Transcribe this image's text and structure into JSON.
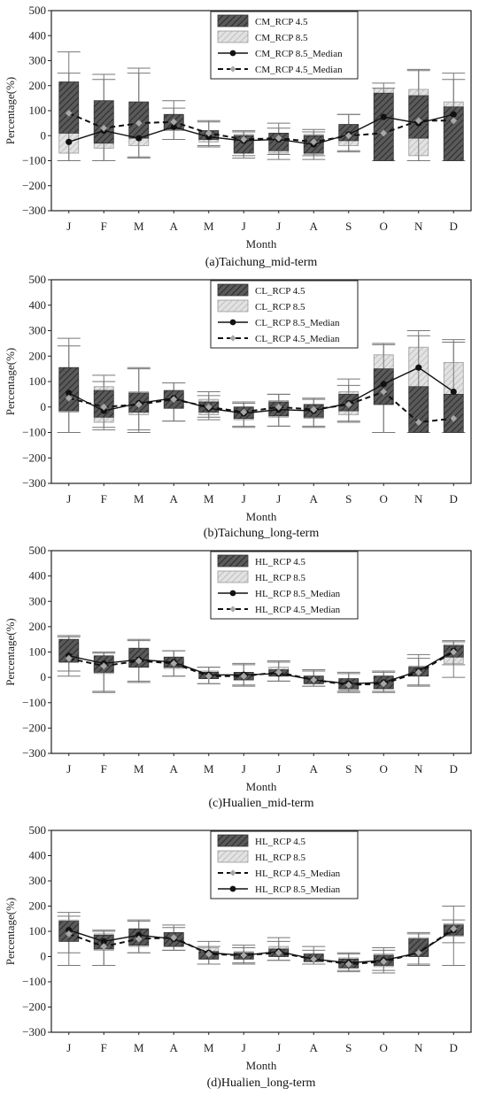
{
  "chart_data": [
    {
      "type": "box",
      "caption": "(a)Taichung_mid-term",
      "xlabel": "Month",
      "ylabel": "Percentage(%)",
      "ylim": [
        -300,
        500
      ],
      "yticks": [
        "500",
        "400",
        "300",
        "200",
        "100",
        "0",
        "−100",
        "−200",
        "−300"
      ],
      "categories": [
        "J",
        "F",
        "M",
        "A",
        "M",
        "J",
        "J",
        "A",
        "S",
        "O",
        "N",
        "D"
      ],
      "legend": [
        {
          "label": "CM_RCP 4.5",
          "kind": "box45"
        },
        {
          "label": "CM_RCP 8.5",
          "kind": "box85"
        },
        {
          "label": "CM_RCP 8.5_Median",
          "kind": "median85"
        },
        {
          "label": "CM_RCP 4.5_Median",
          "kind": "median45"
        }
      ],
      "rcp45_box": [
        {
          "whisker_min": -100,
          "q1": 10,
          "q3": 215,
          "whisker_max": 335
        },
        {
          "whisker_min": -100,
          "q1": -30,
          "q3": 140,
          "whisker_max": 245
        },
        {
          "whisker_min": -85,
          "q1": -10,
          "q3": 135,
          "whisker_max": 270
        },
        {
          "whisker_min": -15,
          "q1": 25,
          "q3": 85,
          "whisker_max": 140
        },
        {
          "whisker_min": -40,
          "q1": -15,
          "q3": 20,
          "whisker_max": 55
        },
        {
          "whisker_min": -80,
          "q1": -70,
          "q3": 0,
          "whisker_max": 15
        },
        {
          "whisker_min": -75,
          "q1": -60,
          "q3": 10,
          "whisker_max": 30
        },
        {
          "whisker_min": -80,
          "q1": -70,
          "q3": 0,
          "whisker_max": 15
        },
        {
          "whisker_min": -60,
          "q1": -20,
          "q3": 45,
          "whisker_max": 85
        },
        {
          "whisker_min": -100,
          "q1": -100,
          "q3": 170,
          "whisker_max": 190
        },
        {
          "whisker_min": -100,
          "q1": -10,
          "q3": 160,
          "whisker_max": 260
        },
        {
          "whisker_min": -100,
          "q1": -100,
          "q3": 115,
          "whisker_max": 225
        }
      ],
      "rcp85_box": [
        {
          "whisker_min": -100,
          "q1": -70,
          "q3": 60,
          "whisker_max": 250
        },
        {
          "whisker_min": -100,
          "q1": -50,
          "q3": 120,
          "whisker_max": 225
        },
        {
          "whisker_min": -90,
          "q1": -40,
          "q3": 110,
          "whisker_max": 250
        },
        {
          "whisker_min": -15,
          "q1": 20,
          "q3": 75,
          "whisker_max": 110
        },
        {
          "whisker_min": -45,
          "q1": -25,
          "q3": 20,
          "whisker_max": 60
        },
        {
          "whisker_min": -90,
          "q1": -65,
          "q3": 5,
          "whisker_max": 20
        },
        {
          "whisker_min": -95,
          "q1": -70,
          "q3": 10,
          "whisker_max": 50
        },
        {
          "whisker_min": -95,
          "q1": -75,
          "q3": 5,
          "whisker_max": 25
        },
        {
          "whisker_min": -65,
          "q1": -40,
          "q3": 40,
          "whisker_max": 85
        },
        {
          "whisker_min": -100,
          "q1": -100,
          "q3": 190,
          "whisker_max": 210
        },
        {
          "whisker_min": -100,
          "q1": -80,
          "q3": 185,
          "whisker_max": 265
        },
        {
          "whisker_min": -100,
          "q1": -100,
          "q3": 135,
          "whisker_max": 250
        }
      ],
      "rcp85_median": [
        -25,
        20,
        -10,
        35,
        -5,
        -20,
        -15,
        -35,
        5,
        75,
        50,
        85
      ],
      "rcp45_median": [
        90,
        30,
        50,
        55,
        10,
        -15,
        -10,
        -25,
        0,
        10,
        60,
        60
      ]
    },
    {
      "type": "box",
      "caption": "(b)Taichung_long-term",
      "xlabel": "Month",
      "ylabel": "Percentage(%)",
      "ylim": [
        -300,
        500
      ],
      "yticks": [
        "500",
        "400",
        "300",
        "200",
        "100",
        "0",
        "−100",
        "−200",
        "−300"
      ],
      "categories": [
        "J",
        "F",
        "M",
        "A",
        "M",
        "J",
        "J",
        "A",
        "S",
        "O",
        "N",
        "D"
      ],
      "legend": [
        {
          "label": "CL_RCP 4.5",
          "kind": "box45"
        },
        {
          "label": "CL_RCP 8.5",
          "kind": "box85"
        },
        {
          "label": "CL_RCP 8.5_Median",
          "kind": "median85"
        },
        {
          "label": "CL_RCP 4.5_Median",
          "kind": "median45"
        }
      ],
      "rcp45_box": [
        {
          "whisker_min": -100,
          "q1": -15,
          "q3": 155,
          "whisker_max": 240
        },
        {
          "whisker_min": -80,
          "q1": -40,
          "q3": 65,
          "whisker_max": 100
        },
        {
          "whisker_min": -90,
          "q1": -20,
          "q3": 55,
          "whisker_max": 155
        },
        {
          "whisker_min": -55,
          "q1": -5,
          "q3": 65,
          "whisker_max": 95
        },
        {
          "whisker_min": -40,
          "q1": -20,
          "q3": 20,
          "whisker_max": 45
        },
        {
          "whisker_min": -75,
          "q1": -45,
          "q3": 0,
          "whisker_max": 15
        },
        {
          "whisker_min": -75,
          "q1": -35,
          "q3": 20,
          "whisker_max": 50
        },
        {
          "whisker_min": -75,
          "q1": -40,
          "q3": 10,
          "whisker_max": 30
        },
        {
          "whisker_min": -55,
          "q1": -15,
          "q3": 50,
          "whisker_max": 85
        },
        {
          "whisker_min": -100,
          "q1": 10,
          "q3": 150,
          "whisker_max": 245
        },
        {
          "whisker_min": -100,
          "q1": -100,
          "q3": 80,
          "whisker_max": 280
        },
        {
          "whisker_min": -100,
          "q1": -100,
          "q3": 50,
          "whisker_max": 255
        }
      ],
      "rcp85_box": [
        {
          "whisker_min": -100,
          "q1": -20,
          "q3": 120,
          "whisker_max": 270
        },
        {
          "whisker_min": -90,
          "q1": -60,
          "q3": 80,
          "whisker_max": 125
        },
        {
          "whisker_min": -100,
          "q1": -30,
          "q3": 60,
          "whisker_max": 150
        },
        {
          "whisker_min": -55,
          "q1": -5,
          "q3": 55,
          "whisker_max": 95
        },
        {
          "whisker_min": -50,
          "q1": -30,
          "q3": 30,
          "whisker_max": 60
        },
        {
          "whisker_min": -80,
          "q1": -50,
          "q3": 0,
          "whisker_max": 20
        },
        {
          "whisker_min": -75,
          "q1": -40,
          "q3": 25,
          "whisker_max": 50
        },
        {
          "whisker_min": -80,
          "q1": -45,
          "q3": 10,
          "whisker_max": 35
        },
        {
          "whisker_min": -60,
          "q1": -30,
          "q3": 60,
          "whisker_max": 110
        },
        {
          "whisker_min": -100,
          "q1": 10,
          "q3": 205,
          "whisker_max": 250
        },
        {
          "whisker_min": -100,
          "q1": -80,
          "q3": 235,
          "whisker_max": 300
        },
        {
          "whisker_min": -100,
          "q1": -80,
          "q3": 175,
          "whisker_max": 265
        }
      ],
      "rcp85_median": [
        55,
        -15,
        15,
        35,
        -5,
        -25,
        -10,
        -15,
        15,
        90,
        155,
        60
      ],
      "rcp45_median": [
        35,
        0,
        10,
        30,
        0,
        -20,
        0,
        -10,
        10,
        60,
        -60,
        -45
      ]
    },
    {
      "type": "box",
      "caption": "(c)Hualien_mid-term",
      "xlabel": "Month",
      "ylabel": "Percentage(%)",
      "ylim": [
        -300,
        500
      ],
      "yticks": [
        "500",
        "400",
        "300",
        "200",
        "100",
        "0",
        "−100",
        "−200",
        "−300"
      ],
      "categories": [
        "J",
        "F",
        "M",
        "A",
        "M",
        "J",
        "J",
        "A",
        "S",
        "O",
        "N",
        "D"
      ],
      "legend": [
        {
          "label": "HL_RCP 4.5",
          "kind": "box45"
        },
        {
          "label": "HL_RCP 8.5",
          "kind": "box85"
        },
        {
          "label": "HL_RCP 8.5_Median",
          "kind": "median85"
        },
        {
          "label": "HL_RCP 4.5_Median",
          "kind": "median45"
        }
      ],
      "rcp45_box": [
        {
          "whisker_min": 5,
          "q1": 60,
          "q3": 150,
          "whisker_max": 165
        },
        {
          "whisker_min": -55,
          "q1": 20,
          "q3": 85,
          "whisker_max": 95
        },
        {
          "whisker_min": -15,
          "q1": 40,
          "q3": 115,
          "whisker_max": 145
        },
        {
          "whisker_min": 5,
          "q1": 40,
          "q3": 80,
          "whisker_max": 105
        },
        {
          "whisker_min": -25,
          "q1": -5,
          "q3": 20,
          "whisker_max": 40
        },
        {
          "whisker_min": -30,
          "q1": -10,
          "q3": 20,
          "whisker_max": 50
        },
        {
          "whisker_min": -15,
          "q1": 5,
          "q3": 30,
          "whisker_max": 60
        },
        {
          "whisker_min": -35,
          "q1": -25,
          "q3": 5,
          "whisker_max": 25
        },
        {
          "whisker_min": -55,
          "q1": -45,
          "q3": -5,
          "whisker_max": 15
        },
        {
          "whisker_min": -55,
          "q1": -45,
          "q3": 5,
          "whisker_max": 20
        },
        {
          "whisker_min": -30,
          "q1": 5,
          "q3": 40,
          "whisker_max": 75
        },
        {
          "whisker_min": 50,
          "q1": 80,
          "q3": 125,
          "whisker_max": 140
        }
      ],
      "rcp85_box": [
        {
          "whisker_min": 25,
          "q1": 60,
          "q3": 140,
          "whisker_max": 160
        },
        {
          "whisker_min": -60,
          "q1": 15,
          "q3": 80,
          "whisker_max": 100
        },
        {
          "whisker_min": -20,
          "q1": 40,
          "q3": 110,
          "whisker_max": 150
        },
        {
          "whisker_min": 5,
          "q1": 35,
          "q3": 70,
          "whisker_max": 105
        },
        {
          "whisker_min": -25,
          "q1": -5,
          "q3": 25,
          "whisker_max": 40
        },
        {
          "whisker_min": -35,
          "q1": -10,
          "q3": 15,
          "whisker_max": 55
        },
        {
          "whisker_min": -15,
          "q1": 5,
          "q3": 40,
          "whisker_max": 65
        },
        {
          "whisker_min": -35,
          "q1": -25,
          "q3": 5,
          "whisker_max": 30
        },
        {
          "whisker_min": -60,
          "q1": -50,
          "q3": -10,
          "whisker_max": 20
        },
        {
          "whisker_min": -60,
          "q1": -45,
          "q3": 5,
          "whisker_max": 25
        },
        {
          "whisker_min": -35,
          "q1": 5,
          "q3": 45,
          "whisker_max": 90
        },
        {
          "whisker_min": 0,
          "q1": 55,
          "q3": 130,
          "whisker_max": 145
        }
      ],
      "rcp85_median": [
        85,
        55,
        70,
        60,
        10,
        10,
        15,
        -10,
        -25,
        -20,
        25,
        105
      ],
      "rcp45_median": [
        75,
        45,
        65,
        55,
        5,
        5,
        20,
        -10,
        -30,
        -25,
        20,
        100
      ]
    },
    {
      "type": "box",
      "caption": "(d)Hualien_long-term",
      "xlabel": "Month",
      "ylabel": "Percentage(%)",
      "ylim": [
        -300,
        500
      ],
      "yticks": [
        "500",
        "400",
        "300",
        "200",
        "100",
        "0",
        "−100",
        "−200",
        "−300"
      ],
      "categories": [
        "J",
        "F",
        "M",
        "A",
        "M",
        "J",
        "J",
        "A",
        "S",
        "O",
        "N",
        "D"
      ],
      "legend": [
        {
          "label": "HL_RCP 4.5",
          "kind": "box45"
        },
        {
          "label": "HL_RCP 8.5",
          "kind": "box85"
        },
        {
          "label": "HL_RCP 4.5_Median",
          "kind": "median45"
        },
        {
          "label": "HL_RCP 8.5_Median",
          "kind": "median85"
        }
      ],
      "rcp45_box": [
        {
          "whisker_min": 15,
          "q1": 60,
          "q3": 140,
          "whisker_max": 160
        },
        {
          "whisker_min": -35,
          "q1": 30,
          "q3": 85,
          "whisker_max": 100
        },
        {
          "whisker_min": 15,
          "q1": 45,
          "q3": 110,
          "whisker_max": 140
        },
        {
          "whisker_min": 25,
          "q1": 40,
          "q3": 95,
          "whisker_max": 115
        },
        {
          "whisker_min": -30,
          "q1": -10,
          "q3": 20,
          "whisker_max": 40
        },
        {
          "whisker_min": -30,
          "q1": -10,
          "q3": 15,
          "whisker_max": 35
        },
        {
          "whisker_min": -15,
          "q1": 0,
          "q3": 30,
          "whisker_max": 60
        },
        {
          "whisker_min": -30,
          "q1": -20,
          "q3": 10,
          "whisker_max": 25
        },
        {
          "whisker_min": -55,
          "q1": -45,
          "q3": -10,
          "whisker_max": 10
        },
        {
          "whisker_min": -55,
          "q1": -35,
          "q3": 5,
          "whisker_max": 25
        },
        {
          "whisker_min": -30,
          "q1": 0,
          "q3": 70,
          "whisker_max": 90
        },
        {
          "whisker_min": 55,
          "q1": 85,
          "q3": 125,
          "whisker_max": 145
        }
      ],
      "rcp85_box": [
        {
          "whisker_min": -35,
          "q1": 70,
          "q3": 145,
          "whisker_max": 175
        },
        {
          "whisker_min": -35,
          "q1": 25,
          "q3": 90,
          "whisker_max": 105
        },
        {
          "whisker_min": 15,
          "q1": 40,
          "q3": 105,
          "whisker_max": 145
        },
        {
          "whisker_min": 25,
          "q1": 45,
          "q3": 95,
          "whisker_max": 125
        },
        {
          "whisker_min": -30,
          "q1": -10,
          "q3": 35,
          "whisker_max": 60
        },
        {
          "whisker_min": -25,
          "q1": -10,
          "q3": 20,
          "whisker_max": 45
        },
        {
          "whisker_min": -15,
          "q1": 5,
          "q3": 40,
          "whisker_max": 75
        },
        {
          "whisker_min": -30,
          "q1": -20,
          "q3": 10,
          "whisker_max": 40
        },
        {
          "whisker_min": -60,
          "q1": -45,
          "q3": -5,
          "whisker_max": 15
        },
        {
          "whisker_min": -65,
          "q1": -40,
          "q3": 10,
          "whisker_max": 35
        },
        {
          "whisker_min": -35,
          "q1": 5,
          "q3": 75,
          "whisker_max": 95
        },
        {
          "whisker_min": -35,
          "q1": 80,
          "q3": 130,
          "whisker_max": 200
        }
      ],
      "rcp45_median": [
        90,
        40,
        70,
        75,
        10,
        5,
        15,
        -10,
        -30,
        -20,
        15,
        110
      ],
      "rcp85_median": [
        105,
        60,
        85,
        70,
        15,
        5,
        20,
        -10,
        -25,
        -15,
        15,
        105
      ]
    }
  ],
  "colors": {
    "box45_fill": "#555555",
    "box85_fill": "#d8d8d8",
    "median85": "#111111",
    "median45": "#111111",
    "median45_marker": "#a8a8a8",
    "whisker": "#777777"
  }
}
